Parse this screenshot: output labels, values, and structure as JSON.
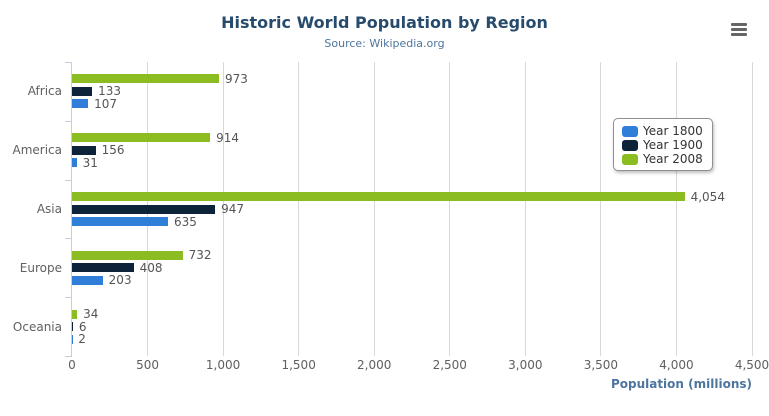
{
  "chart_data": {
    "type": "bar",
    "title": "Historic World Population by Region",
    "subtitle": "Source: Wikipedia.org",
    "categories": [
      "Africa",
      "America",
      "Asia",
      "Europe",
      "Oceania"
    ],
    "series": [
      {
        "name": "Year 1800",
        "color": "#2f7ed8",
        "values": [
          107,
          31,
          635,
          203,
          2
        ]
      },
      {
        "name": "Year 1900",
        "color": "#0d233a",
        "values": [
          133,
          156,
          947,
          408,
          6
        ]
      },
      {
        "name": "Year 2008",
        "color": "#8bbc21",
        "values": [
          973,
          914,
          4054,
          732,
          34
        ]
      }
    ],
    "bar_order_top_to_bottom": [
      "Year 2008",
      "Year 1900",
      "Year 1800"
    ],
    "xlabel": "Population (millions)",
    "xlim": [
      0,
      4500
    ],
    "tick_interval": 500,
    "ticks": [
      0,
      500,
      1000,
      1500,
      2000,
      2500,
      3000,
      3500,
      4000,
      4500
    ],
    "grid": true,
    "legend": {
      "position": "right",
      "items": [
        "Year 1800",
        "Year 1900",
        "Year 2008"
      ]
    }
  },
  "toolbar": {
    "export_menu_icon": "hamburger-menu"
  },
  "colors": {
    "title": "#274b6d",
    "subtitle": "#4d759e",
    "axis_title": "#4d759e",
    "tick_label": "#606060",
    "category_label": "#606060",
    "data_label": "#555555",
    "gridline": "#d8d8d8",
    "axis_line": "#c0d0e0",
    "legend_border": "#909090",
    "legend_text": "#333333",
    "menu_icon": "#666666"
  }
}
